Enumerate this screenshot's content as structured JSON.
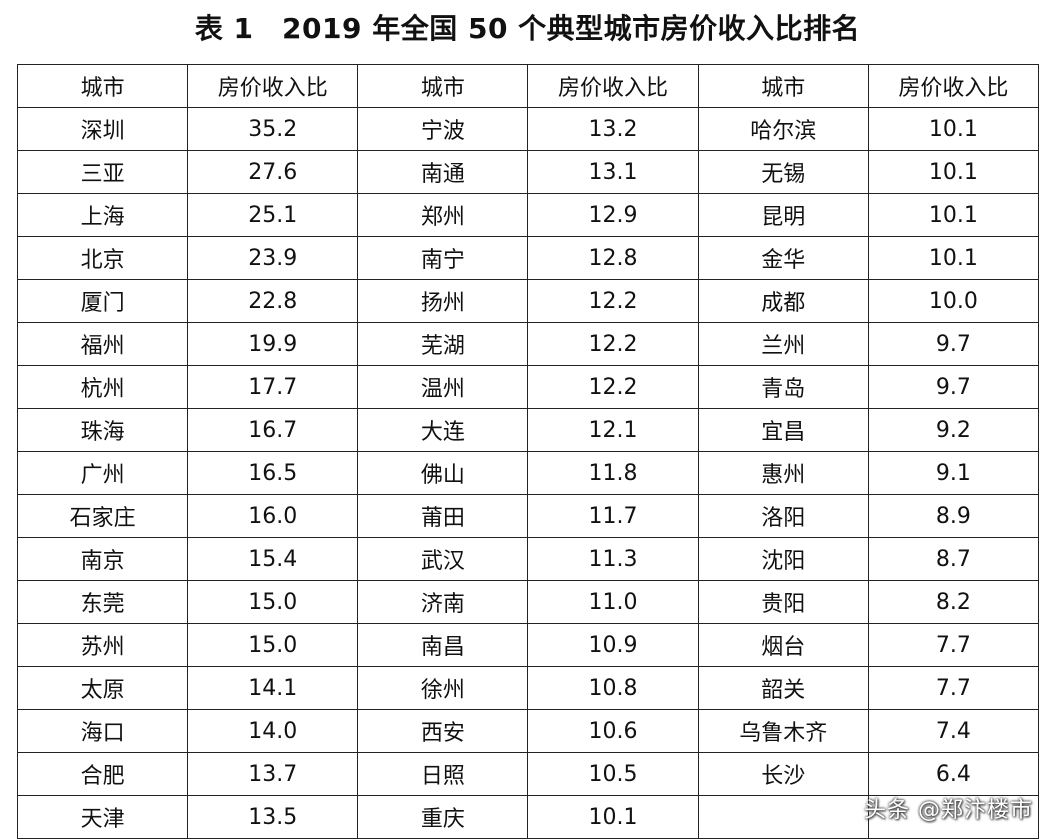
{
  "title": "表 1　2019 年全国 50 个典型城市房价收入比排名",
  "headers": [
    "城市",
    "房价收入比",
    "城市",
    "房价收入比",
    "城市",
    "房价收入比"
  ],
  "rows": [
    [
      "深圳",
      "35.2",
      "宁波",
      "13.2",
      "哈尔滨",
      "10.1"
    ],
    [
      "三亚",
      "27.6",
      "南通",
      "13.1",
      "无锡",
      "10.1"
    ],
    [
      "上海",
      "25.1",
      "郑州",
      "12.9",
      "昆明",
      "10.1"
    ],
    [
      "北京",
      "23.9",
      "南宁",
      "12.8",
      "金华",
      "10.1"
    ],
    [
      "厦门",
      "22.8",
      "扬州",
      "12.2",
      "成都",
      "10.0"
    ],
    [
      "福州",
      "19.9",
      "芜湖",
      "12.2",
      "兰州",
      "9.7"
    ],
    [
      "杭州",
      "17.7",
      "温州",
      "12.2",
      "青岛",
      "9.7"
    ],
    [
      "珠海",
      "16.7",
      "大连",
      "12.1",
      "宜昌",
      "9.2"
    ],
    [
      "广州",
      "16.5",
      "佛山",
      "11.8",
      "惠州",
      "9.1"
    ],
    [
      "石家庄",
      "16.0",
      "莆田",
      "11.7",
      "洛阳",
      "8.9"
    ],
    [
      "南京",
      "15.4",
      "武汉",
      "11.3",
      "沈阳",
      "8.7"
    ],
    [
      "东莞",
      "15.0",
      "济南",
      "11.0",
      "贵阳",
      "8.2"
    ],
    [
      "苏州",
      "15.0",
      "南昌",
      "10.9",
      "烟台",
      "7.7"
    ],
    [
      "太原",
      "14.1",
      "徐州",
      "10.8",
      "韶关",
      "7.7"
    ],
    [
      "海口",
      "14.0",
      "西安",
      "10.6",
      "乌鲁木齐",
      "7.4"
    ],
    [
      "合肥",
      "13.7",
      "日照",
      "10.5",
      "长沙",
      "6.4"
    ],
    [
      "天津",
      "13.5",
      "重庆",
      "10.1",
      "",
      ""
    ]
  ],
  "watermark": "头条 @郑汴楼市"
}
